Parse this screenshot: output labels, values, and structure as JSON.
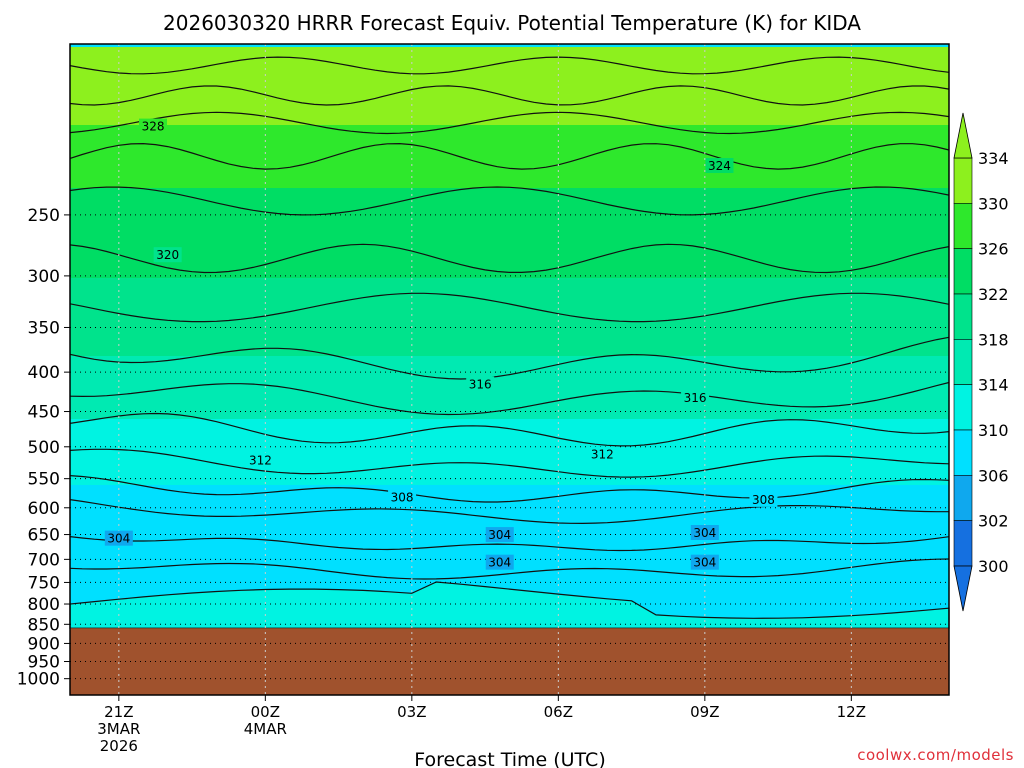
{
  "title": "2026030320 HRRR Forecast Equiv. Potential Temperature (K) for KIDA",
  "credit": "coolwx.com/models",
  "chart_data": {
    "type": "contour-cross-section",
    "title": "2026030320 HRRR Forecast Equiv. Potential Temperature (K) for KIDA",
    "xlabel": "Forecast Time (UTC)",
    "ylabel": "",
    "x_unit": "forecast hours from 20Z 3 Mar 2026",
    "x_range": [
      0,
      18
    ],
    "y_unit": "hPa",
    "y_range": [
      1050,
      150
    ],
    "y_scale": "log-pressure",
    "y_ticks": [
      "250",
      "300",
      "350",
      "400",
      "450",
      "500",
      "550",
      "600",
      "650",
      "700",
      "750",
      "800",
      "850",
      "900",
      "950",
      "1000"
    ],
    "x_ticks": [
      {
        "hour": 1,
        "lines": [
          "21Z",
          "3MAR",
          "2026"
        ]
      },
      {
        "hour": 4,
        "lines": [
          "00Z",
          "4MAR"
        ]
      },
      {
        "hour": 7,
        "lines": [
          "03Z"
        ]
      },
      {
        "hour": 10,
        "lines": [
          "06Z"
        ]
      },
      {
        "hour": 13,
        "lines": [
          "09Z"
        ]
      },
      {
        "hour": 16,
        "lines": [
          "12Z"
        ]
      }
    ],
    "grid": true,
    "colorbar": {
      "levels": [
        "334",
        "330",
        "326",
        "322",
        "318",
        "314",
        "310",
        "306",
        "302",
        "300"
      ],
      "bands": [
        {
          "min": 300,
          "max": 302,
          "color": "#1570e0"
        },
        {
          "min": 302,
          "max": 306,
          "color": "#0fa8ee"
        },
        {
          "min": 306,
          "max": 310,
          "color": "#00e0ff"
        },
        {
          "min": 310,
          "max": 314,
          "color": "#00f3e2"
        },
        {
          "min": 314,
          "max": 318,
          "color": "#00eab2"
        },
        {
          "min": 318,
          "max": 322,
          "color": "#00e38c"
        },
        {
          "min": 322,
          "max": 326,
          "color": "#00dd64"
        },
        {
          "min": 326,
          "max": 330,
          "color": "#2ee82c"
        },
        {
          "min": 330,
          "max": 334,
          "color": "#8df01e"
        }
      ],
      "extend": "both"
    },
    "ground_color": "#a0522d",
    "surface_pressure": 860,
    "contour_labels": [
      {
        "text": "328",
        "hour": 1.7,
        "p": 192
      },
      {
        "text": "324",
        "hour": 13.3,
        "p": 216
      },
      {
        "text": "320",
        "hour": 2.0,
        "p": 282
      },
      {
        "text": "316",
        "hour": 8.4,
        "p": 415
      },
      {
        "text": "316",
        "hour": 12.8,
        "p": 432
      },
      {
        "text": "312",
        "hour": 3.9,
        "p": 521
      },
      {
        "text": "312",
        "hour": 10.9,
        "p": 512
      },
      {
        "text": "308",
        "hour": 6.8,
        "p": 582
      },
      {
        "text": "308",
        "hour": 14.2,
        "p": 586
      },
      {
        "text": "304",
        "hour": 1.0,
        "p": 658
      },
      {
        "text": "304",
        "hour": 8.8,
        "p": 651
      },
      {
        "text": "304",
        "hour": 13.0,
        "p": 647
      },
      {
        "text": "304",
        "hour": 8.8,
        "p": 707
      },
      {
        "text": "304",
        "hour": 13.0,
        "p": 707
      }
    ]
  }
}
